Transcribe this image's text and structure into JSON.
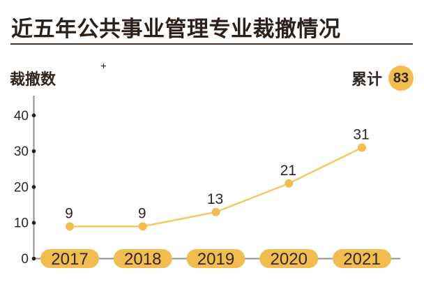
{
  "header": {
    "title": "近五年公共事业管理专业裁撤情况"
  },
  "colors": {
    "amber": "#F1BD4F",
    "line": "#F6C862",
    "axis": "#95908A",
    "ink": "#2E2620"
  },
  "chart_data": {
    "type": "line",
    "title": "近五年公共事业管理专业裁撤情况",
    "ylabel": "裁撤数",
    "xlabel": "",
    "categories": [
      "2017",
      "2018",
      "2019",
      "2020",
      "2021"
    ],
    "values": [
      9,
      9,
      13,
      21,
      31
    ],
    "ylim": [
      0,
      40
    ],
    "yticks": [
      0,
      10,
      20,
      30,
      40
    ],
    "grid": false,
    "legend": false,
    "marker": "circle",
    "cumulative": {
      "label": "累计",
      "value": "83"
    }
  }
}
